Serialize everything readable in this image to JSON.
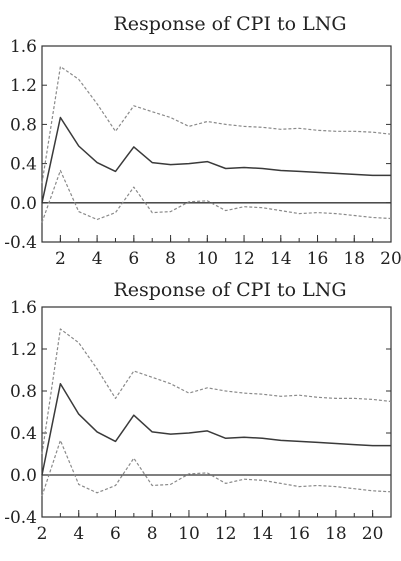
{
  "chart_data": [
    {
      "type": "line",
      "title": "Response of CPI to LNG",
      "x": [
        1,
        2,
        3,
        4,
        5,
        6,
        7,
        8,
        9,
        10,
        11,
        12,
        13,
        14,
        15,
        16,
        17,
        18,
        19,
        20
      ],
      "xticks": [
        "2",
        "4",
        "6",
        "8",
        "10",
        "12",
        "14",
        "16",
        "18",
        "20"
      ],
      "xlim": [
        1,
        20
      ],
      "yticks": [
        "1.6",
        "1.2",
        "0.8",
        "0.4",
        "0.0",
        "-0.4"
      ],
      "ylim": [
        -0.4,
        1.6
      ],
      "zero_line": true,
      "series": [
        {
          "role": "upper",
          "style": "dashed",
          "values": [
            0.2,
            1.39,
            1.26,
            1.01,
            0.73,
            0.99,
            0.93,
            0.87,
            0.78,
            0.83,
            0.8,
            0.78,
            0.77,
            0.75,
            0.76,
            0.74,
            0.73,
            0.73,
            0.72,
            0.7
          ]
        },
        {
          "role": "response",
          "style": "solid",
          "values": [
            0.0,
            0.87,
            0.58,
            0.41,
            0.32,
            0.57,
            0.41,
            0.39,
            0.4,
            0.42,
            0.35,
            0.36,
            0.35,
            0.33,
            0.32,
            0.31,
            0.3,
            0.29,
            0.28,
            0.28
          ]
        },
        {
          "role": "lower",
          "style": "dashed",
          "values": [
            -0.2,
            0.33,
            -0.09,
            -0.17,
            -0.1,
            0.16,
            -0.1,
            -0.09,
            0.01,
            0.02,
            -0.08,
            -0.04,
            -0.05,
            -0.08,
            -0.11,
            -0.1,
            -0.11,
            -0.13,
            -0.15,
            -0.16
          ]
        }
      ]
    },
    {
      "type": "line",
      "title": "Response of CPI to LNG",
      "x": [
        2,
        3,
        4,
        5,
        6,
        7,
        8,
        9,
        10,
        11,
        12,
        13,
        14,
        15,
        16,
        17,
        18,
        19,
        20,
        21
      ],
      "xticks": [
        "2",
        "4",
        "6",
        "8",
        "10",
        "12",
        "14",
        "16",
        "18",
        "20"
      ],
      "xlim": [
        2,
        21
      ],
      "yticks": [
        "1.6",
        "1.2",
        "0.8",
        "0.4",
        "0.0",
        "-0.4"
      ],
      "ylim": [
        -0.4,
        1.6
      ],
      "zero_line": true,
      "series": [
        {
          "role": "upper",
          "style": "dashed",
          "values": [
            0.2,
            1.39,
            1.26,
            1.01,
            0.73,
            0.99,
            0.93,
            0.87,
            0.78,
            0.83,
            0.8,
            0.78,
            0.77,
            0.75,
            0.76,
            0.74,
            0.73,
            0.73,
            0.72,
            0.7
          ]
        },
        {
          "role": "response",
          "style": "solid",
          "values": [
            0.0,
            0.87,
            0.58,
            0.41,
            0.32,
            0.57,
            0.41,
            0.39,
            0.4,
            0.42,
            0.35,
            0.36,
            0.35,
            0.33,
            0.32,
            0.31,
            0.3,
            0.29,
            0.28,
            0.28
          ]
        },
        {
          "role": "lower",
          "style": "dashed",
          "values": [
            -0.2,
            0.33,
            -0.09,
            -0.17,
            -0.1,
            0.16,
            -0.1,
            -0.09,
            0.01,
            0.02,
            -0.08,
            -0.04,
            -0.05,
            -0.08,
            -0.11,
            -0.1,
            -0.11,
            -0.13,
            -0.15,
            -0.16
          ]
        }
      ]
    }
  ],
  "colors": {
    "response_line": "#3a3a3a",
    "band_line": "#8a8a8a",
    "axis": "#333333",
    "zero_line": "#333333"
  }
}
